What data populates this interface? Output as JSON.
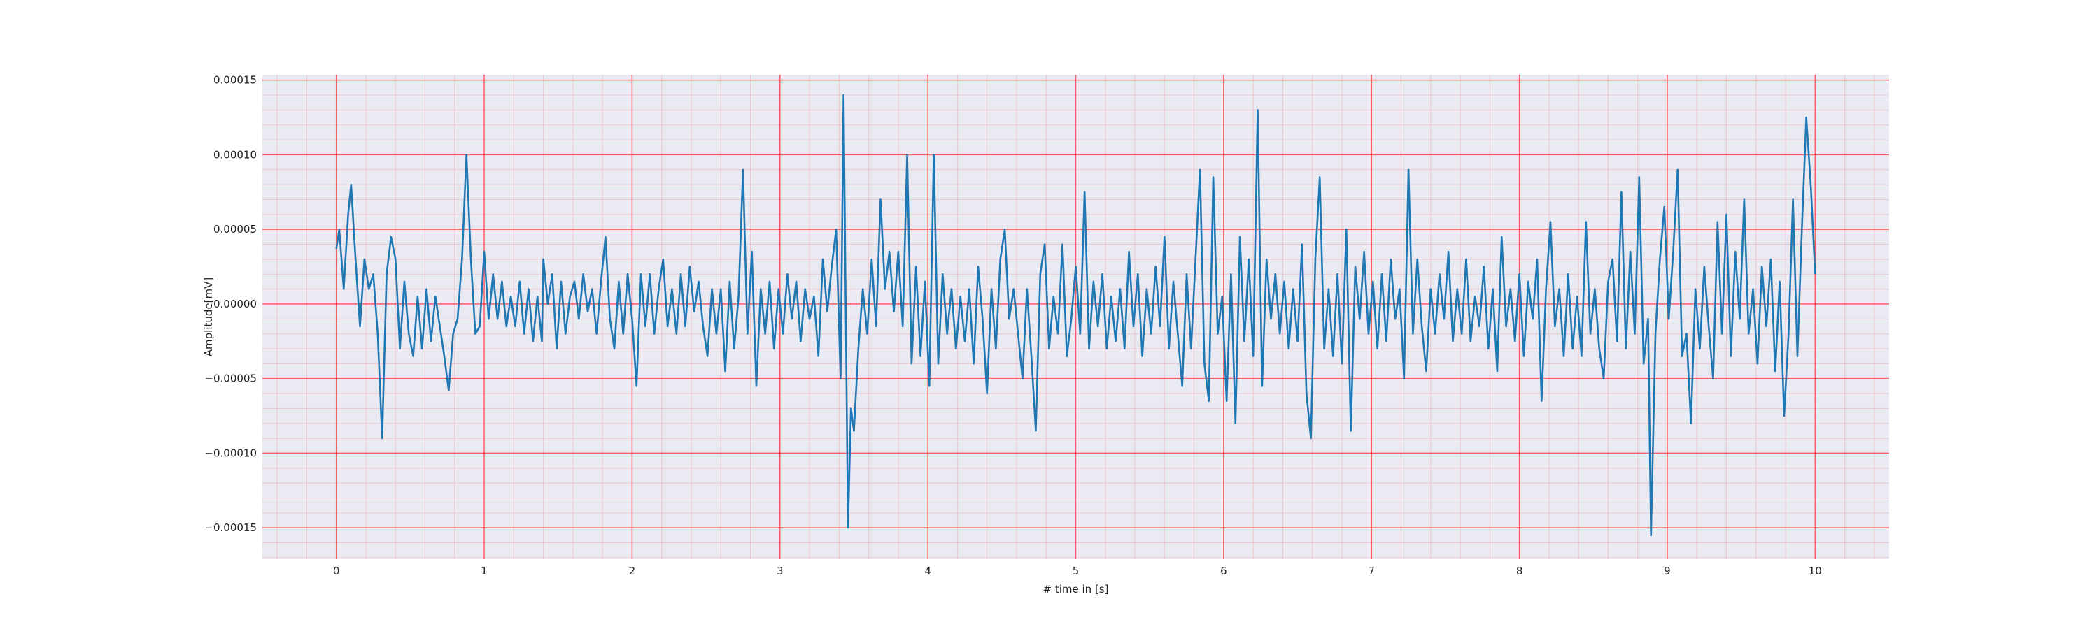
{
  "chart_data": {
    "type": "line",
    "xlabel": "# time in [s]",
    "ylabel": "Amplitude[mV]",
    "x": [
      0.0,
      0.02,
      0.05,
      0.08,
      0.1,
      0.13,
      0.16,
      0.19,
      0.22,
      0.25,
      0.28,
      0.31,
      0.34,
      0.37,
      0.4,
      0.43,
      0.46,
      0.49,
      0.52,
      0.55,
      0.58,
      0.61,
      0.64,
      0.67,
      0.7,
      0.73,
      0.76,
      0.79,
      0.82,
      0.85,
      0.88,
      0.91,
      0.94,
      0.97,
      1.0,
      1.03,
      1.06,
      1.09,
      1.12,
      1.15,
      1.18,
      1.21,
      1.24,
      1.27,
      1.3,
      1.33,
      1.36,
      1.39,
      1.4,
      1.43,
      1.46,
      1.49,
      1.52,
      1.55,
      1.58,
      1.61,
      1.64,
      1.67,
      1.7,
      1.73,
      1.76,
      1.79,
      1.82,
      1.85,
      1.88,
      1.91,
      1.94,
      1.97,
      2.0,
      2.03,
      2.06,
      2.09,
      2.12,
      2.15,
      2.18,
      2.21,
      2.24,
      2.27,
      2.3,
      2.33,
      2.36,
      2.39,
      2.42,
      2.45,
      2.48,
      2.51,
      2.54,
      2.57,
      2.6,
      2.63,
      2.66,
      2.69,
      2.72,
      2.75,
      2.78,
      2.81,
      2.84,
      2.87,
      2.9,
      2.93,
      2.96,
      2.99,
      3.02,
      3.05,
      3.08,
      3.11,
      3.14,
      3.17,
      3.2,
      3.23,
      3.26,
      3.29,
      3.32,
      3.35,
      3.38,
      3.41,
      3.43,
      3.46,
      3.48,
      3.5,
      3.53,
      3.56,
      3.59,
      3.62,
      3.65,
      3.68,
      3.71,
      3.74,
      3.77,
      3.8,
      3.83,
      3.86,
      3.89,
      3.92,
      3.95,
      3.98,
      4.01,
      4.04,
      4.07,
      4.1,
      4.13,
      4.16,
      4.19,
      4.22,
      4.25,
      4.28,
      4.31,
      4.34,
      4.37,
      4.4,
      4.43,
      4.46,
      4.49,
      4.52,
      4.55,
      4.58,
      4.61,
      4.64,
      4.67,
      4.7,
      4.73,
      4.76,
      4.79,
      4.82,
      4.85,
      4.88,
      4.91,
      4.94,
      4.97,
      5.0,
      5.03,
      5.06,
      5.09,
      5.12,
      5.15,
      5.18,
      5.21,
      5.24,
      5.27,
      5.3,
      5.33,
      5.36,
      5.39,
      5.42,
      5.45,
      5.48,
      5.51,
      5.54,
      5.57,
      5.6,
      5.63,
      5.66,
      5.69,
      5.72,
      5.75,
      5.78,
      5.81,
      5.84,
      5.87,
      5.9,
      5.93,
      5.96,
      5.99,
      6.02,
      6.05,
      6.08,
      6.11,
      6.14,
      6.17,
      6.2,
      6.23,
      6.26,
      6.29,
      6.32,
      6.35,
      6.38,
      6.41,
      6.44,
      6.47,
      6.5,
      6.53,
      6.56,
      6.59,
      6.62,
      6.65,
      6.68,
      6.71,
      6.74,
      6.77,
      6.8,
      6.83,
      6.86,
      6.89,
      6.92,
      6.95,
      6.98,
      7.01,
      7.04,
      7.07,
      7.1,
      7.13,
      7.16,
      7.19,
      7.22,
      7.25,
      7.28,
      7.31,
      7.34,
      7.37,
      7.4,
      7.43,
      7.46,
      7.49,
      7.52,
      7.55,
      7.58,
      7.61,
      7.64,
      7.67,
      7.7,
      7.73,
      7.76,
      7.79,
      7.82,
      7.85,
      7.88,
      7.91,
      7.94,
      7.97,
      8.0,
      8.03,
      8.06,
      8.09,
      8.12,
      8.15,
      8.18,
      8.21,
      8.24,
      8.27,
      8.3,
      8.33,
      8.36,
      8.39,
      8.42,
      8.45,
      8.48,
      8.51,
      8.54,
      8.57,
      8.6,
      8.63,
      8.66,
      8.69,
      8.72,
      8.75,
      8.78,
      8.81,
      8.84,
      8.87,
      8.89,
      8.92,
      8.95,
      8.98,
      9.01,
      9.04,
      9.07,
      9.1,
      9.13,
      9.16,
      9.19,
      9.22,
      9.25,
      9.28,
      9.31,
      9.34,
      9.37,
      9.4,
      9.43,
      9.46,
      9.49,
      9.52,
      9.55,
      9.58,
      9.61,
      9.64,
      9.67,
      9.7,
      9.73,
      9.76,
      9.79,
      9.82,
      9.85,
      9.88,
      9.91,
      9.94,
      9.97,
      10.0
    ],
    "series": [
      {
        "color": "#1f77b4",
        "values": [
          3.7e-05,
          5e-05,
          1e-05,
          6e-05,
          8e-05,
          3e-05,
          -1.5e-05,
          3e-05,
          1e-05,
          2e-05,
          -2e-05,
          -9e-05,
          2e-05,
          4.5e-05,
          3e-05,
          -3e-05,
          1.5e-05,
          -2e-05,
          -3.5e-05,
          5e-06,
          -3e-05,
          1e-05,
          -2.5e-05,
          5e-06,
          -1.5e-05,
          -3.5e-05,
          -5.8e-05,
          -2e-05,
          -1e-05,
          3e-05,
          0.0001,
          3e-05,
          -2e-05,
          -1.5e-05,
          3.5e-05,
          -1e-05,
          2e-05,
          -1e-05,
          1.5e-05,
          -1.5e-05,
          5e-06,
          -1.5e-05,
          1.5e-05,
          -2e-05,
          1e-05,
          -2.5e-05,
          5e-06,
          -2.5e-05,
          3e-05,
          0,
          2e-05,
          -3e-05,
          1.5e-05,
          -2e-05,
          5e-06,
          1.5e-05,
          -1e-05,
          2e-05,
          -5e-06,
          1e-05,
          -2e-05,
          1.5e-05,
          4.5e-05,
          -1e-05,
          -3e-05,
          1.5e-05,
          -2e-05,
          2e-05,
          -1e-05,
          -5.5e-05,
          2e-05,
          -1.5e-05,
          2e-05,
          -2e-05,
          1e-05,
          3e-05,
          -1.5e-05,
          1e-05,
          -2e-05,
          2e-05,
          -1.5e-05,
          2.5e-05,
          -5e-06,
          1.5e-05,
          -1.5e-05,
          -3.5e-05,
          1e-05,
          -2e-05,
          1e-05,
          -4.5e-05,
          1.5e-05,
          -3e-05,
          5e-06,
          9e-05,
          -2e-05,
          3.5e-05,
          -5.5e-05,
          1e-05,
          -2e-05,
          1.5e-05,
          -3e-05,
          1e-05,
          -2e-05,
          2e-05,
          -1e-05,
          1.5e-05,
          -2.5e-05,
          1e-05,
          -1e-05,
          5e-06,
          -3.5e-05,
          3e-05,
          -5e-06,
          2.5e-05,
          5e-05,
          -5e-05,
          0.00014,
          -0.00015,
          -7e-05,
          -8.5e-05,
          -3e-05,
          1e-05,
          -2e-05,
          3e-05,
          -1.5e-05,
          7e-05,
          1e-05,
          3.5e-05,
          -5e-06,
          3.5e-05,
          -1.5e-05,
          0.0001,
          -4e-05,
          2.5e-05,
          -3.5e-05,
          1.5e-05,
          -5.5e-05,
          0.0001,
          -4e-05,
          2e-05,
          -2e-05,
          1e-05,
          -3e-05,
          5e-06,
          -2.5e-05,
          1e-05,
          -4e-05,
          2.5e-05,
          -1e-05,
          -6e-05,
          1e-05,
          -3e-05,
          3e-05,
          5e-05,
          -1e-05,
          1e-05,
          -2e-05,
          -5e-05,
          1e-05,
          -3.5e-05,
          -8.5e-05,
          2e-05,
          4e-05,
          -3e-05,
          5e-06,
          -2e-05,
          4e-05,
          -3.5e-05,
          -1e-05,
          2.5e-05,
          -2e-05,
          7.5e-05,
          -3e-05,
          1.5e-05,
          -1.5e-05,
          2e-05,
          -3e-05,
          5e-06,
          -2.5e-05,
          1e-05,
          -3e-05,
          3.5e-05,
          -1.5e-05,
          2e-05,
          -3.5e-05,
          1e-05,
          -2e-05,
          2.5e-05,
          -1.5e-05,
          4.5e-05,
          -3e-05,
          1.5e-05,
          -2e-05,
          -5.5e-05,
          2e-05,
          -3e-05,
          3e-05,
          9e-05,
          -4e-05,
          -6.5e-05,
          8.5e-05,
          -2e-05,
          5e-06,
          -6.5e-05,
          2e-05,
          -8e-05,
          4.5e-05,
          -2.5e-05,
          3e-05,
          -3.5e-05,
          0.00013,
          -5.5e-05,
          3e-05,
          -1e-05,
          2e-05,
          -2e-05,
          1.5e-05,
          -3e-05,
          1e-05,
          -2.5e-05,
          4e-05,
          -6e-05,
          -9e-05,
          3e-05,
          8.5e-05,
          -3e-05,
          1e-05,
          -3.5e-05,
          2e-05,
          -4e-05,
          5e-05,
          -8.5e-05,
          2.5e-05,
          -1e-05,
          3.5e-05,
          -2e-05,
          1.5e-05,
          -3e-05,
          2e-05,
          -2.5e-05,
          3e-05,
          -1e-05,
          1e-05,
          -5e-05,
          9e-05,
          -2e-05,
          3e-05,
          -1.5e-05,
          -4.5e-05,
          1e-05,
          -2e-05,
          2e-05,
          -1e-05,
          3.5e-05,
          -2.5e-05,
          1e-05,
          -2e-05,
          3e-05,
          -2.5e-05,
          5e-06,
          -1.5e-05,
          2.5e-05,
          -3e-05,
          1e-05,
          -4.5e-05,
          4.5e-05,
          -1.5e-05,
          1e-05,
          -2.5e-05,
          2e-05,
          -3.5e-05,
          1.5e-05,
          -1e-05,
          3e-05,
          -6.5e-05,
          1e-05,
          5.5e-05,
          -1.5e-05,
          1e-05,
          -3.5e-05,
          2e-05,
          -3e-05,
          5e-06,
          -3.5e-05,
          5.5e-05,
          -2e-05,
          1e-05,
          -3e-05,
          -5e-05,
          1.5e-05,
          3e-05,
          -2.5e-05,
          7.5e-05,
          -3e-05,
          3.5e-05,
          -2e-05,
          8.5e-05,
          -4e-05,
          -1e-05,
          -0.000155,
          -2e-05,
          3e-05,
          6.5e-05,
          -1e-05,
          3.5e-05,
          9e-05,
          -3.5e-05,
          -2e-05,
          -8e-05,
          1e-05,
          -3e-05,
          2.5e-05,
          -1.5e-05,
          -5e-05,
          5.5e-05,
          -2e-05,
          6e-05,
          -3.5e-05,
          3.5e-05,
          -1e-05,
          7e-05,
          -2e-05,
          1e-05,
          -4e-05,
          2.5e-05,
          -1.5e-05,
          3e-05,
          -4.5e-05,
          1.5e-05,
          -7.5e-05,
          -2e-05,
          7e-05,
          -3.5e-05,
          5e-05,
          0.000125,
          8e-05,
          2e-05
        ]
      }
    ],
    "xlim": [
      -0.5,
      10.5
    ],
    "xticks": [
      0,
      1,
      2,
      3,
      4,
      5,
      6,
      7,
      8,
      9,
      10
    ],
    "ylim": [
      -0.000171,
      0.0001536
    ],
    "yticks": [
      {
        "value": -0.00015,
        "label": "−0.00015"
      },
      {
        "value": -0.0001,
        "label": "−0.00010"
      },
      {
        "value": -5e-05,
        "label": "−0.00005"
      },
      {
        "value": 0,
        "label": "0.00000"
      },
      {
        "value": 5e-05,
        "label": "0.00005"
      },
      {
        "value": 0.0001,
        "label": "0.00010"
      },
      {
        "value": 0.00015,
        "label": "0.00015"
      }
    ],
    "grid": true,
    "grid_color": "#ff0000",
    "minor_grid": true,
    "background": "#eaeaf2"
  }
}
